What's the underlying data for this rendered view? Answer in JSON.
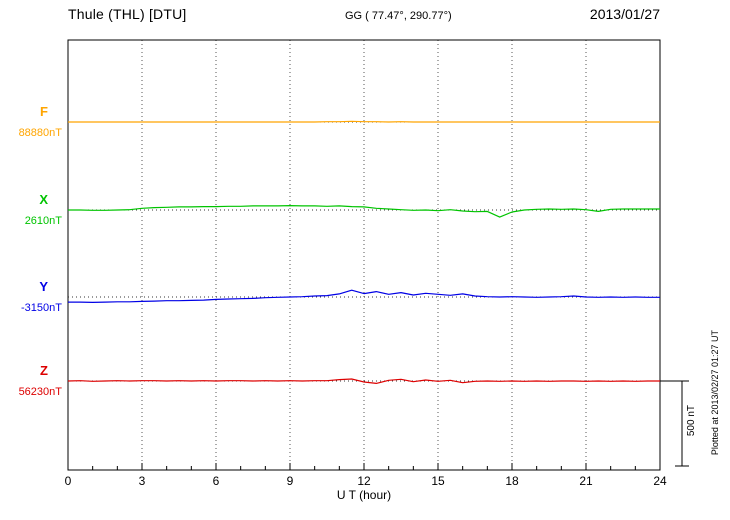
{
  "header": {
    "station": "Thule (THL)  [DTU]",
    "coords": "GG ( 77.47°, 290.77°)",
    "date": "2013/01/27"
  },
  "side": {
    "scale_label": "500 nT",
    "plotted_at": "Plotted at 2013/02/27 01:27 UT"
  },
  "chart_data": {
    "type": "line",
    "title": "Thule (THL) [DTU] magnetogram 2013/01/27",
    "xlabel": "U T (hour)",
    "ylabel": "",
    "x_range": [
      0,
      24
    ],
    "x_ticks": [
      0,
      3,
      6,
      9,
      12,
      15,
      18,
      21,
      24
    ],
    "x_minor_tick_step": 1,
    "x_step_hours": 0.5,
    "grid": "dotted vertical gridlines every 3 hours; dotted horizontal baseline per component",
    "scale_bar_nT": 500,
    "legend_position": "left margin, one colored label per stacked trace",
    "series": [
      {
        "name": "F",
        "color": "#FFA500",
        "baseline_nT": 88880,
        "baseline_label": "88880nT",
        "values_offset_nT": [
          0,
          0,
          0,
          0,
          0,
          0,
          0,
          0,
          0,
          0,
          0,
          0,
          0,
          0,
          0,
          0,
          0,
          0,
          0,
          0,
          0,
          2,
          2,
          4,
          2,
          2,
          0,
          2,
          0,
          0,
          0,
          0,
          0,
          0,
          0,
          0,
          0,
          0,
          0,
          0,
          0,
          0,
          0,
          0,
          0,
          0,
          0,
          0,
          0
        ]
      },
      {
        "name": "X",
        "color": "#00C400",
        "baseline_nT": 2610,
        "baseline_label": "2610nT",
        "values_offset_nT": [
          0,
          0,
          -2,
          -2,
          0,
          2,
          10,
          14,
          16,
          18,
          18,
          20,
          20,
          22,
          22,
          24,
          24,
          24,
          26,
          24,
          24,
          22,
          24,
          20,
          18,
          10,
          6,
          2,
          -2,
          0,
          -4,
          2,
          -6,
          -10,
          -8,
          -42,
          -12,
          0,
          4,
          6,
          4,
          6,
          2,
          -8,
          4,
          6,
          6,
          6,
          6
        ]
      },
      {
        "name": "Y",
        "color": "#0000E6",
        "baseline_nT": -3150,
        "baseline_label": "-3150nT",
        "values_offset_nT": [
          -30,
          -30,
          -32,
          -30,
          -28,
          -28,
          -26,
          -24,
          -22,
          -22,
          -20,
          -18,
          -14,
          -12,
          -10,
          -8,
          -4,
          -2,
          0,
          2,
          6,
          8,
          18,
          40,
          20,
          32,
          16,
          26,
          12,
          22,
          16,
          10,
          18,
          6,
          2,
          0,
          2,
          0,
          -2,
          0,
          2,
          6,
          0,
          -2,
          0,
          -2,
          0,
          -2,
          -2
        ]
      },
      {
        "name": "Z",
        "color": "#DD0000",
        "baseline_nT": 56230,
        "baseline_label": "56230nT",
        "values_offset_nT": [
          0,
          2,
          -2,
          0,
          2,
          0,
          2,
          2,
          0,
          2,
          0,
          2,
          0,
          2,
          2,
          0,
          2,
          0,
          2,
          0,
          2,
          2,
          8,
          12,
          -6,
          -14,
          4,
          10,
          -4,
          6,
          -2,
          4,
          -10,
          -2,
          0,
          -2,
          0,
          -2,
          0,
          -2,
          0,
          0,
          -2,
          0,
          -2,
          0,
          -2,
          0,
          0
        ]
      }
    ]
  }
}
